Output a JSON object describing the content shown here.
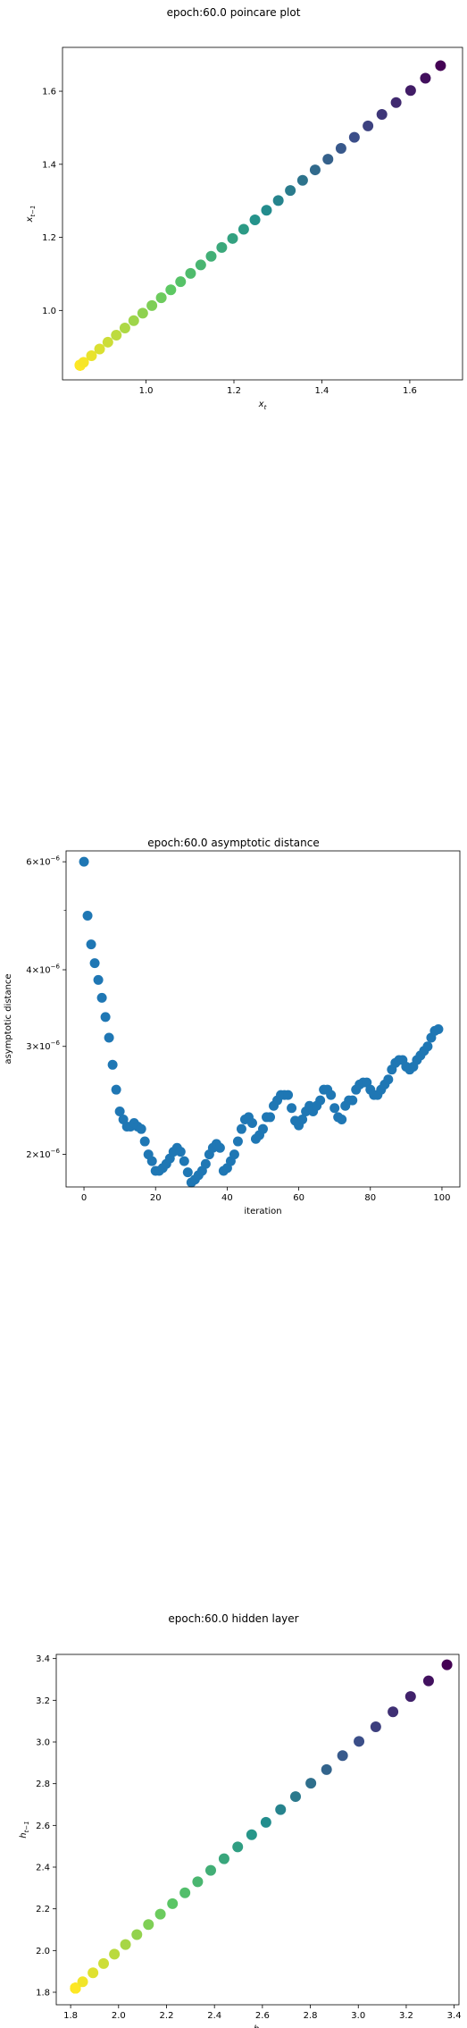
{
  "chart_data": [
    {
      "type": "scatter",
      "title": "epoch:60.0 poincare plot",
      "xlabel": "x_t",
      "ylabel": "x_{t-1}",
      "xlim": [
        0.81,
        1.72
      ],
      "ylim": [
        0.81,
        1.72
      ],
      "xticks": [
        1.0,
        1.2,
        1.4,
        1.6
      ],
      "yticks": [
        1.0,
        1.2,
        1.4,
        1.6
      ],
      "xtick_labels": [
        "1.0",
        "1.2",
        "1.4",
        "1.6"
      ],
      "ytick_labels": [
        "1.0",
        "1.2",
        "1.4",
        "1.6"
      ],
      "colormap": "viridis (dark purple at highest values, yellow at lowest)",
      "colors": [
        "#440154",
        "#3b528b",
        "#21908d",
        "#5dc863",
        "#fde725"
      ],
      "grid": false,
      "points": {
        "x_start": 1.67,
        "ratio": 0.9794,
        "count": 100,
        "x_end": 0.85
      }
    },
    {
      "type": "scatter",
      "title": "epoch:60.0 asymptotic distance",
      "xlabel": "iteration",
      "ylabel": "asymptotic distance",
      "yscale": "log",
      "xlim": [
        -5,
        105
      ],
      "ylim": [
        1.77e-06,
        6.25e-06
      ],
      "xticks": [
        0,
        20,
        40,
        60,
        80,
        100
      ],
      "xtick_labels": [
        "0",
        "20",
        "40",
        "60",
        "80",
        "100"
      ],
      "yticks": [
        2e-06,
        3e-06,
        4e-06,
        6e-06
      ],
      "ytick_labels": [
        {
          "mantissa": "2",
          "base": "10",
          "exp": "−6"
        },
        {
          "mantissa": "3",
          "base": "10",
          "exp": "−6"
        },
        {
          "mantissa": "4",
          "base": "10",
          "exp": "−6"
        },
        {
          "mantissa": "6",
          "base": "10",
          "exp": "−6"
        }
      ],
      "color": "#1f77b4",
      "grid": false,
      "x": [
        0,
        1,
        2,
        3,
        4,
        5,
        6,
        7,
        8,
        9,
        10,
        11,
        12,
        13,
        14,
        15,
        16,
        17,
        18,
        19,
        20,
        21,
        22,
        23,
        24,
        25,
        26,
        27,
        28,
        29,
        30,
        31,
        32,
        33,
        34,
        35,
        36,
        37,
        38,
        39,
        40,
        41,
        42,
        43,
        44,
        45,
        46,
        47,
        48,
        49,
        50,
        51,
        52,
        53,
        54,
        55,
        56,
        57,
        58,
        59,
        60,
        61,
        62,
        63,
        64,
        65,
        66,
        67,
        68,
        69,
        70,
        71,
        72,
        73,
        74,
        75,
        76,
        77,
        78,
        79,
        80,
        81,
        82,
        83,
        84,
        85,
        86,
        87,
        88,
        89,
        90,
        91,
        92,
        93,
        94,
        95,
        96,
        97,
        98,
        99
      ],
      "y": [
        6e-06,
        4.9e-06,
        4.4e-06,
        4.1e-06,
        3.85e-06,
        3.6e-06,
        3.35e-06,
        3.1e-06,
        2.8e-06,
        2.55e-06,
        2.35e-06,
        2.28e-06,
        2.22e-06,
        2.22e-06,
        2.25e-06,
        2.22e-06,
        2.2e-06,
        2.1e-06,
        2e-06,
        1.95e-06,
        1.88e-06,
        1.88e-06,
        1.9e-06,
        1.93e-06,
        1.97e-06,
        2.02e-06,
        2.05e-06,
        2.02e-06,
        1.95e-06,
        1.87e-06,
        1.8e-06,
        1.82e-06,
        1.85e-06,
        1.88e-06,
        1.93e-06,
        2e-06,
        2.05e-06,
        2.08e-06,
        2.05e-06,
        1.88e-06,
        1.9e-06,
        1.95e-06,
        2e-06,
        2.1e-06,
        2.2e-06,
        2.28e-06,
        2.3e-06,
        2.25e-06,
        2.12e-06,
        2.15e-06,
        2.2e-06,
        2.3e-06,
        2.3e-06,
        2.4e-06,
        2.45e-06,
        2.5e-06,
        2.5e-06,
        2.5e-06,
        2.38e-06,
        2.27e-06,
        2.23e-06,
        2.28e-06,
        2.35e-06,
        2.4e-06,
        2.35e-06,
        2.4e-06,
        2.45e-06,
        2.55e-06,
        2.55e-06,
        2.5e-06,
        2.38e-06,
        2.3e-06,
        2.28e-06,
        2.4e-06,
        2.45e-06,
        2.45e-06,
        2.55e-06,
        2.6e-06,
        2.62e-06,
        2.62e-06,
        2.55e-06,
        2.5e-06,
        2.5e-06,
        2.55e-06,
        2.6e-06,
        2.65e-06,
        2.75e-06,
        2.82e-06,
        2.85e-06,
        2.85e-06,
        2.78e-06,
        2.75e-06,
        2.78e-06,
        2.85e-06,
        2.9e-06,
        2.95e-06,
        3e-06,
        3.1e-06,
        3.18e-06,
        3.2e-06
      ]
    },
    {
      "type": "scatter",
      "title": "epoch:60.0 hidden layer",
      "xlabel": "h_t",
      "ylabel": "h_{t-1}",
      "xlim": [
        1.74,
        3.42
      ],
      "ylim": [
        1.74,
        3.42
      ],
      "xticks": [
        1.8,
        2.0,
        2.2,
        2.4,
        2.6,
        2.8,
        3.0,
        3.2,
        3.4
      ],
      "yticks": [
        1.8,
        2.0,
        2.2,
        2.4,
        2.6,
        2.8,
        3.0,
        3.2,
        3.4
      ],
      "xtick_labels": [
        "1.8",
        "2.0",
        "2.2",
        "2.4",
        "2.6",
        "2.8",
        "3.0",
        "3.2",
        "3.4"
      ],
      "ytick_labels": [
        "1.8",
        "2.0",
        "2.2",
        "2.4",
        "2.6",
        "2.8",
        "3.0",
        "3.2",
        "3.4"
      ],
      "colormap": "viridis (dark purple at highest values, yellow at lowest)",
      "colors": [
        "#440154",
        "#3b528b",
        "#21908d",
        "#5dc863",
        "#fde725"
      ],
      "grid": false,
      "points": {
        "x_start": 3.37,
        "ratio": 0.9772,
        "count": 100,
        "x_end": 1.82
      }
    }
  ]
}
